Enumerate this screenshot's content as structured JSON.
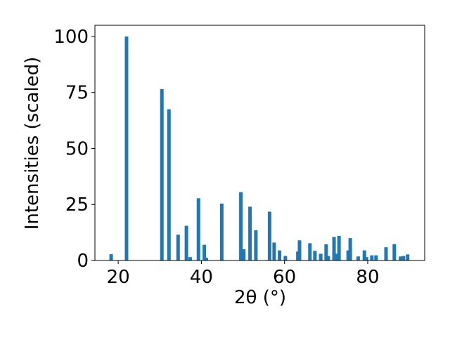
{
  "chart_data": {
    "type": "bar",
    "xlabel": "2θ (°)",
    "ylabel": "Intensities (scaled)",
    "x": [
      18.3,
      22.0,
      30.5,
      32.2,
      34.4,
      36.4,
      37.3,
      39.3,
      40.7,
      41.2,
      44.9,
      49.5,
      50.2,
      51.7,
      53.1,
      56.4,
      57.5,
      58.8,
      60.2,
      63.2,
      63.6,
      66.1,
      67.3,
      68.7,
      70.0,
      70.5,
      71.9,
      72.5,
      73.1,
      75.3,
      75.8,
      77.7,
      79.2,
      79.7,
      81.0,
      82.0,
      84.4,
      86.4,
      87.9,
      88.6,
      89.6
    ],
    "values": [
      2.8,
      100,
      76.5,
      67.5,
      11.5,
      15.5,
      1.5,
      27.8,
      7,
      1.2,
      25.4,
      30.5,
      5,
      24,
      13.5,
      21.8,
      8,
      4.5,
      2,
      4,
      9,
      7.7,
      4.3,
      3,
      7.2,
      2,
      10.5,
      3,
      11,
      4.5,
      10,
      1.8,
      4.5,
      1.5,
      2.3,
      2.3,
      5.9,
      7.3,
      1.8,
      2,
      2.7
    ],
    "color": "#1f77b4",
    "xlim": [
      14.4,
      93.7
    ],
    "xticks": [
      20,
      40,
      60,
      80
    ],
    "ylim": [
      0,
      105
    ],
    "yticks": [
      0,
      25,
      50,
      75,
      100
    ]
  }
}
